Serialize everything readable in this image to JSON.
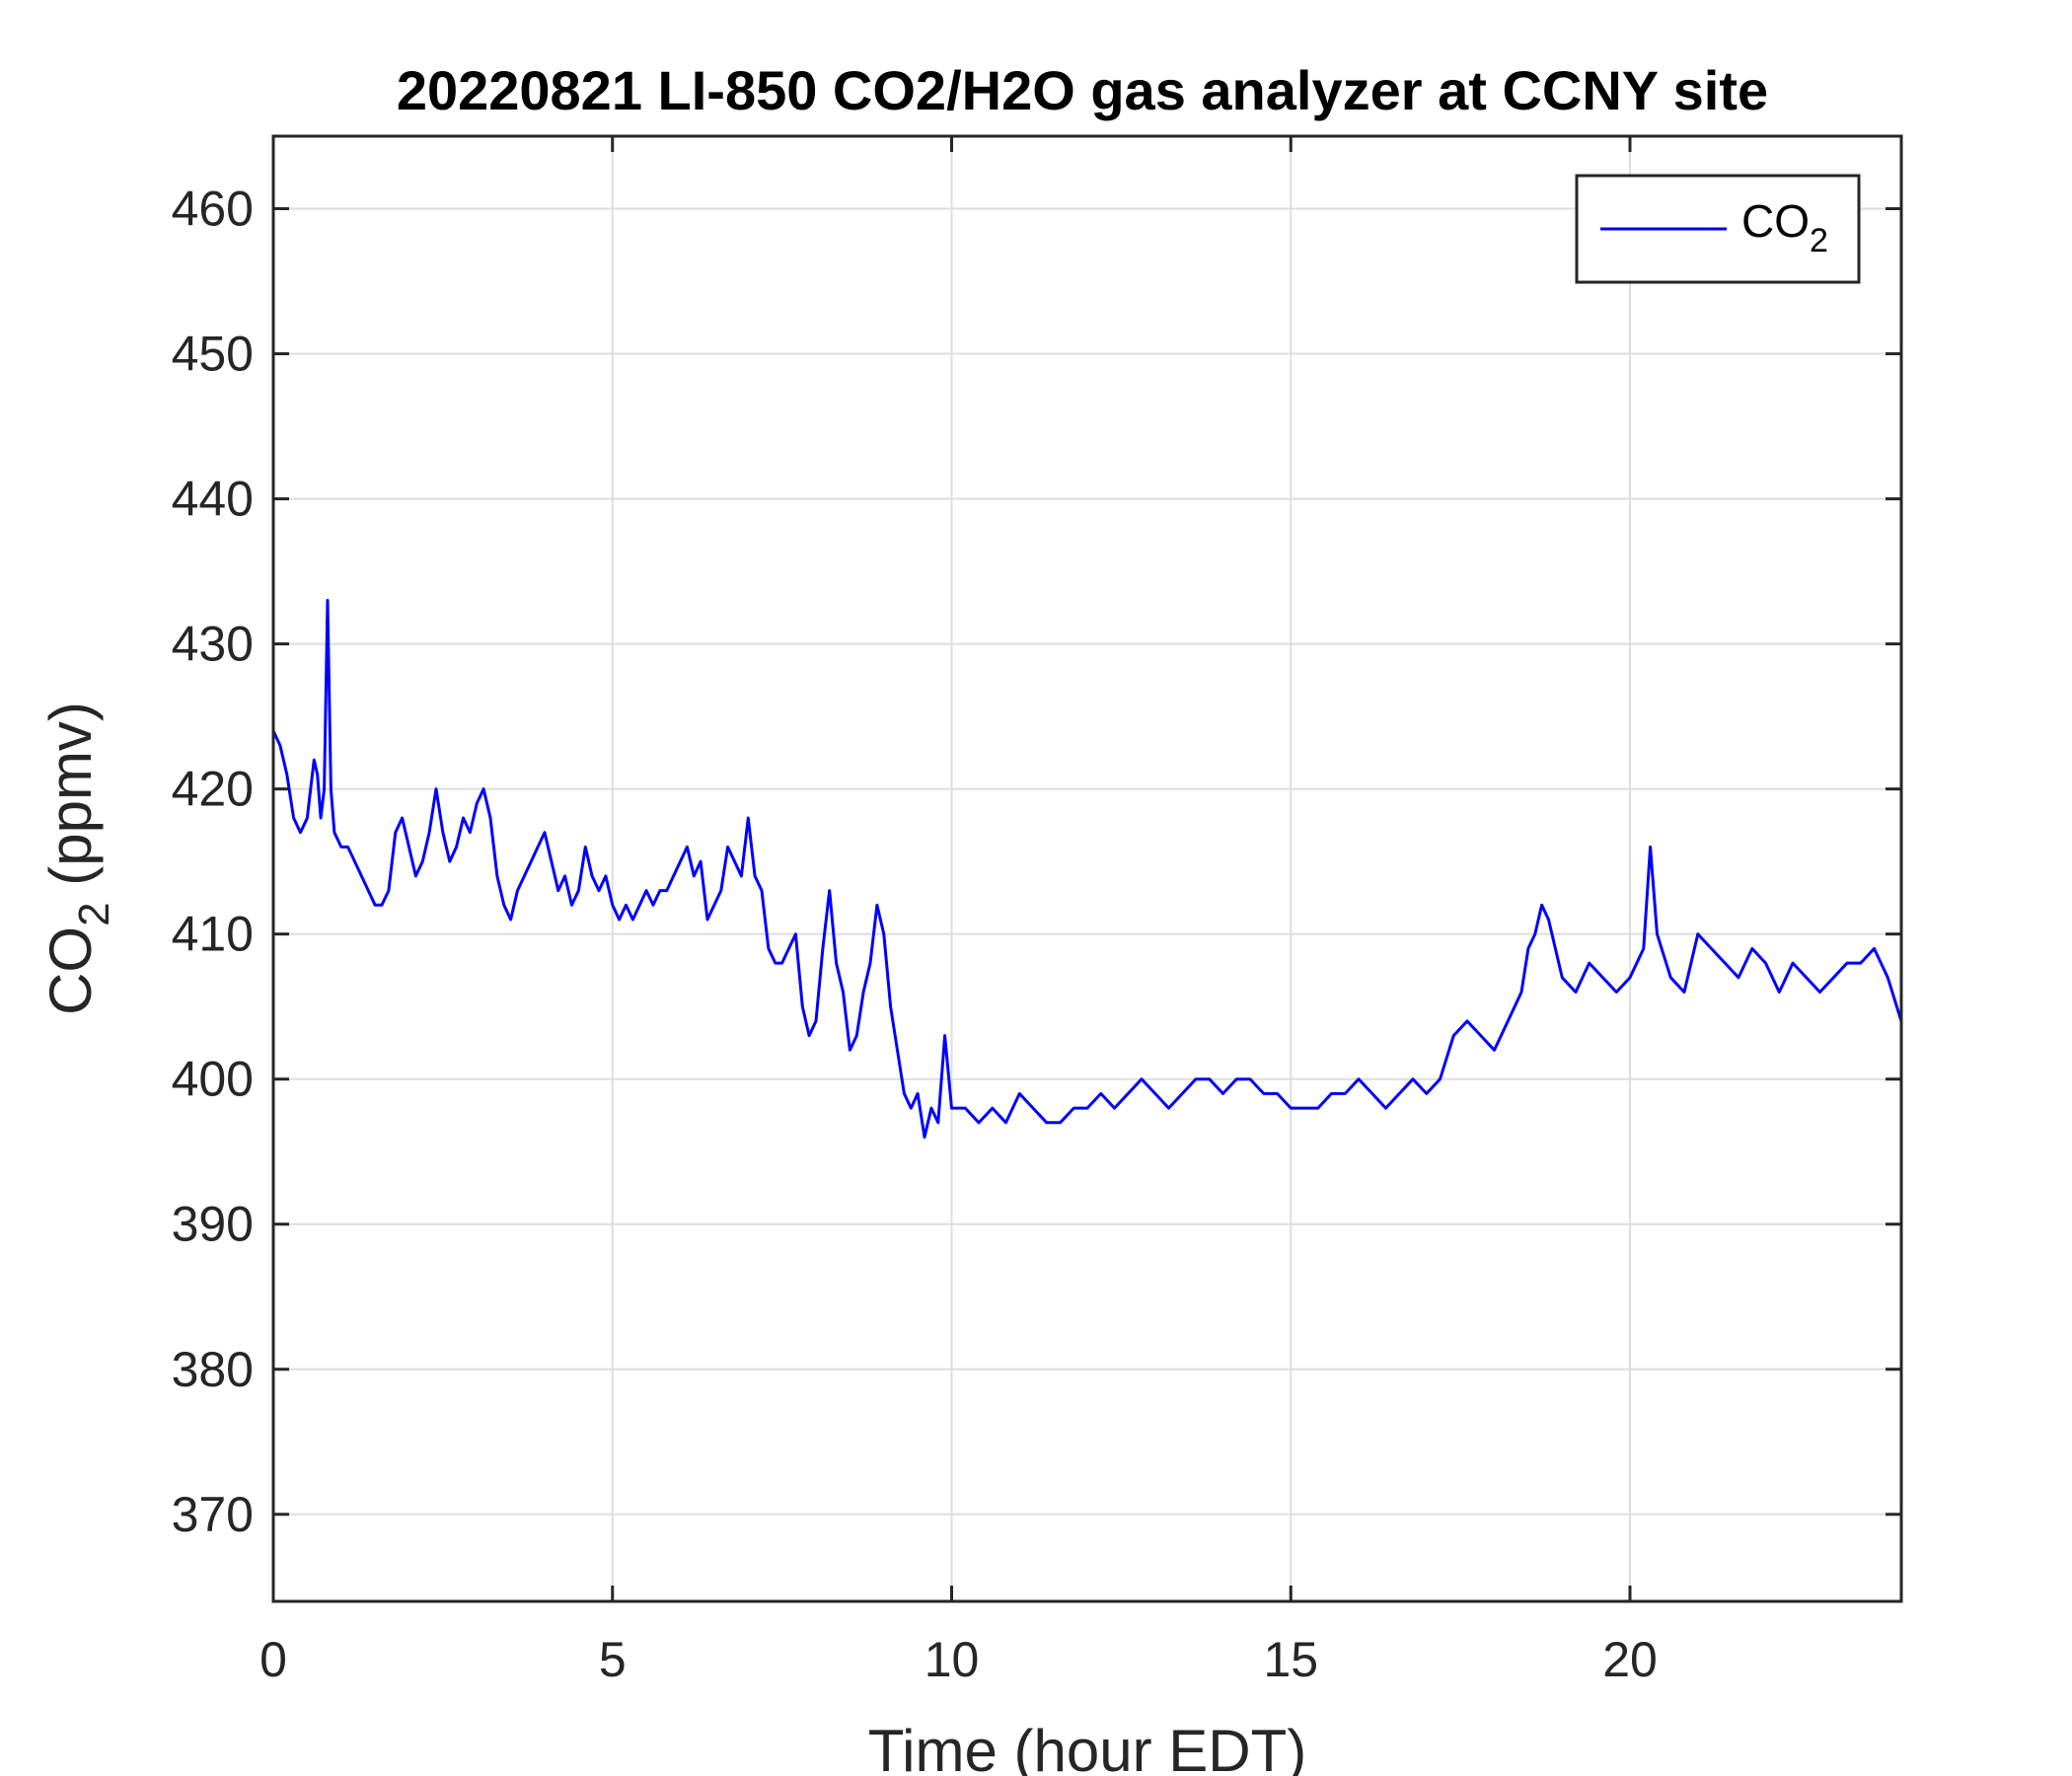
{
  "chart_data": {
    "type": "line",
    "title": "20220821 LI-850 CO2/H2O gas analyzer at CCNY site",
    "xlabel": "Time (hour EDT)",
    "ylabel_main": "CO",
    "ylabel_sub": "2",
    "ylabel_units": " (ppmv)",
    "xlim": [
      0,
      24
    ],
    "ylim": [
      364,
      465
    ],
    "xticks": [
      0,
      5,
      10,
      15,
      20
    ],
    "yticks": [
      370,
      380,
      390,
      400,
      410,
      420,
      430,
      440,
      450,
      460
    ],
    "grid": true,
    "legend_position": "top-right",
    "series": [
      {
        "name_main": "CO",
        "name_sub": "2",
        "color": "#0000FF",
        "x": [
          0.0,
          0.1,
          0.2,
          0.3,
          0.4,
          0.5,
          0.55,
          0.6,
          0.65,
          0.7,
          0.75,
          0.8,
          0.85,
          0.9,
          1.0,
          1.1,
          1.2,
          1.3,
          1.4,
          1.5,
          1.6,
          1.7,
          1.8,
          1.9,
          2.0,
          2.1,
          2.2,
          2.3,
          2.4,
          2.5,
          2.6,
          2.7,
          2.8,
          2.9,
          3.0,
          3.1,
          3.2,
          3.3,
          3.4,
          3.5,
          3.6,
          3.7,
          3.8,
          3.9,
          4.0,
          4.1,
          4.2,
          4.3,
          4.4,
          4.5,
          4.6,
          4.7,
          4.8,
          4.9,
          5.0,
          5.1,
          5.2,
          5.3,
          5.4,
          5.5,
          5.6,
          5.7,
          5.8,
          5.9,
          6.0,
          6.1,
          6.2,
          6.3,
          6.4,
          6.5,
          6.6,
          6.7,
          6.8,
          6.9,
          7.0,
          7.1,
          7.2,
          7.3,
          7.4,
          7.5,
          7.6,
          7.7,
          7.8,
          7.9,
          8.0,
          8.1,
          8.2,
          8.3,
          8.4,
          8.5,
          8.6,
          8.7,
          8.8,
          8.9,
          9.0,
          9.1,
          9.2,
          9.3,
          9.4,
          9.5,
          9.6,
          9.7,
          9.8,
          9.9,
          10.0,
          10.2,
          10.4,
          10.6,
          10.8,
          11.0,
          11.2,
          11.4,
          11.6,
          11.8,
          12.0,
          12.2,
          12.4,
          12.6,
          12.8,
          13.0,
          13.2,
          13.4,
          13.6,
          13.8,
          14.0,
          14.2,
          14.4,
          14.6,
          14.8,
          15.0,
          15.2,
          15.4,
          15.6,
          15.8,
          16.0,
          16.2,
          16.4,
          16.6,
          16.8,
          17.0,
          17.2,
          17.4,
          17.6,
          17.8,
          18.0,
          18.2,
          18.4,
          18.5,
          18.6,
          18.7,
          18.8,
          18.9,
          19.0,
          19.2,
          19.4,
          19.6,
          19.8,
          20.0,
          20.2,
          20.3,
          20.4,
          20.6,
          20.8,
          21.0,
          21.2,
          21.4,
          21.6,
          21.8,
          22.0,
          22.2,
          22.4,
          22.6,
          22.8,
          23.0,
          23.2,
          23.4,
          23.6,
          23.8,
          24.0
        ],
        "y": [
          424,
          423,
          421,
          418,
          417,
          418,
          420,
          422,
          421,
          418,
          420,
          433,
          420,
          417,
          416,
          416,
          415,
          414,
          413,
          412,
          412,
          413,
          417,
          418,
          416,
          414,
          415,
          417,
          420,
          417,
          415,
          416,
          418,
          417,
          419,
          420,
          418,
          414,
          412,
          411,
          413,
          414,
          415,
          416,
          417,
          415,
          413,
          414,
          412,
          413,
          416,
          414,
          413,
          414,
          412,
          411,
          412,
          411,
          412,
          413,
          412,
          413,
          413,
          414,
          415,
          416,
          414,
          415,
          411,
          412,
          413,
          416,
          415,
          414,
          418,
          414,
          413,
          409,
          408,
          408,
          409,
          410,
          405,
          403,
          404,
          409,
          413,
          408,
          406,
          402,
          403,
          406,
          408,
          412,
          410,
          405,
          402,
          399,
          398,
          399,
          396,
          398,
          397,
          403,
          398,
          398,
          397,
          398,
          397,
          399,
          398,
          397,
          397,
          398,
          398,
          399,
          398,
          399,
          400,
          399,
          398,
          399,
          400,
          400,
          399,
          400,
          400,
          399,
          399,
          398,
          398,
          398,
          399,
          399,
          400,
          399,
          398,
          399,
          400,
          399,
          400,
          403,
          404,
          403,
          402,
          404,
          406,
          409,
          410,
          412,
          411,
          409,
          407,
          406,
          408,
          407,
          406,
          407,
          409,
          416,
          410,
          407,
          406,
          410,
          409,
          408,
          407,
          409,
          408,
          406,
          408,
          407,
          406,
          407,
          408,
          408,
          409,
          407,
          404
        ]
      }
    ]
  }
}
